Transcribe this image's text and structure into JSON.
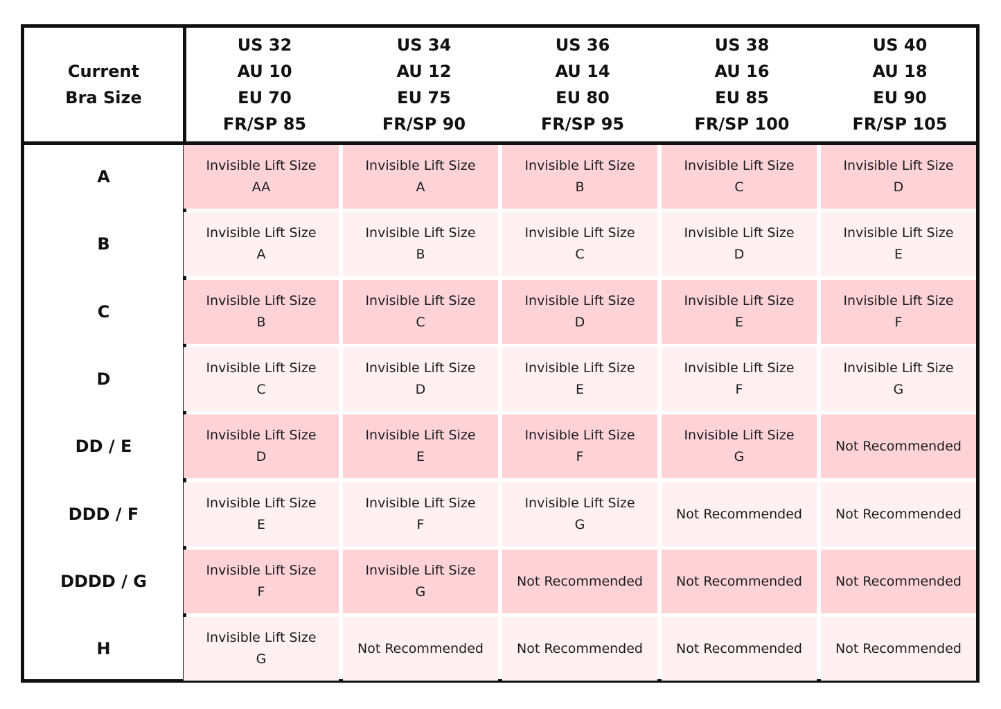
{
  "corner": {
    "line1": "Current",
    "line2": "Bra Size"
  },
  "columns": [
    {
      "us": "US 32",
      "au": "AU 10",
      "eu": "EU 70",
      "frsp": "FR/SP 85"
    },
    {
      "us": "US 34",
      "au": "AU 12",
      "eu": "EU 75",
      "frsp": "FR/SP 90"
    },
    {
      "us": "US 36",
      "au": "AU 14",
      "eu": "EU 80",
      "frsp": "FR/SP 95"
    },
    {
      "us": "US 38",
      "au": "AU 16",
      "eu": "EU 85",
      "frsp": "FR/SP 100"
    },
    {
      "us": "US 40",
      "au": "AU 18",
      "eu": "EU 90",
      "frsp": "FR/SP 105"
    }
  ],
  "rows": [
    {
      "label": "A",
      "cells": [
        {
          "line1": "Invisible Lift Size",
          "line2": "AA"
        },
        {
          "line1": "Invisible Lift Size",
          "line2": "A"
        },
        {
          "line1": "Invisible Lift Size",
          "line2": "B"
        },
        {
          "line1": "Invisible Lift Size",
          "line2": "C"
        },
        {
          "line1": "Invisible Lift Size",
          "line2": "D"
        }
      ]
    },
    {
      "label": "B",
      "cells": [
        {
          "line1": "Invisible Lift Size",
          "line2": "A"
        },
        {
          "line1": "Invisible Lift Size",
          "line2": "B"
        },
        {
          "line1": "Invisible Lift Size",
          "line2": "C"
        },
        {
          "line1": "Invisible Lift Size",
          "line2": "D"
        },
        {
          "line1": "Invisible Lift Size",
          "line2": "E"
        }
      ]
    },
    {
      "label": "C",
      "cells": [
        {
          "line1": "Invisible Lift Size",
          "line2": "B"
        },
        {
          "line1": "Invisible Lift Size",
          "line2": "C"
        },
        {
          "line1": "Invisible Lift Size",
          "line2": "D"
        },
        {
          "line1": "Invisible Lift Size",
          "line2": "E"
        },
        {
          "line1": "Invisible Lift Size",
          "line2": "F"
        }
      ]
    },
    {
      "label": "D",
      "cells": [
        {
          "line1": "Invisible Lift Size",
          "line2": "C"
        },
        {
          "line1": "Invisible Lift Size",
          "line2": "D"
        },
        {
          "line1": "Invisible Lift Size",
          "line2": "E"
        },
        {
          "line1": "Invisible Lift Size",
          "line2": "F"
        },
        {
          "line1": "Invisible Lift Size",
          "line2": "G"
        }
      ]
    },
    {
      "label": "DD / E",
      "cells": [
        {
          "line1": "Invisible Lift Size",
          "line2": "D"
        },
        {
          "line1": "Invisible Lift Size",
          "line2": "E"
        },
        {
          "line1": "Invisible Lift Size",
          "line2": "F"
        },
        {
          "line1": "Invisible Lift Size",
          "line2": "G"
        },
        {
          "line1": "Not Recommended",
          "line2": ""
        }
      ]
    },
    {
      "label": "DDD / F",
      "cells": [
        {
          "line1": "Invisible Lift Size",
          "line2": "E"
        },
        {
          "line1": "Invisible Lift Size",
          "line2": "F"
        },
        {
          "line1": "Invisible Lift Size",
          "line2": "G"
        },
        {
          "line1": "Not Recommended",
          "line2": ""
        },
        {
          "line1": "Not Recommended",
          "line2": ""
        }
      ]
    },
    {
      "label": "DDDD / G",
      "cells": [
        {
          "line1": "Invisible Lift Size",
          "line2": "F"
        },
        {
          "line1": "Invisible Lift Size",
          "line2": "G"
        },
        {
          "line1": "Not Recommended",
          "line2": ""
        },
        {
          "line1": "Not Recommended",
          "line2": ""
        },
        {
          "line1": "Not Recommended",
          "line2": ""
        }
      ]
    },
    {
      "label": "H",
      "cells": [
        {
          "line1": "Invisible Lift Size",
          "line2": "G"
        },
        {
          "line1": "Not Recommended",
          "line2": ""
        },
        {
          "line1": "Not Recommended",
          "line2": ""
        },
        {
          "line1": "Not Recommended",
          "line2": ""
        },
        {
          "line1": "Not Recommended",
          "line2": ""
        }
      ]
    }
  ],
  "colors": {
    "row_dark": "#fed3d8",
    "row_light": "#fff0f1",
    "border": "#111111"
  }
}
